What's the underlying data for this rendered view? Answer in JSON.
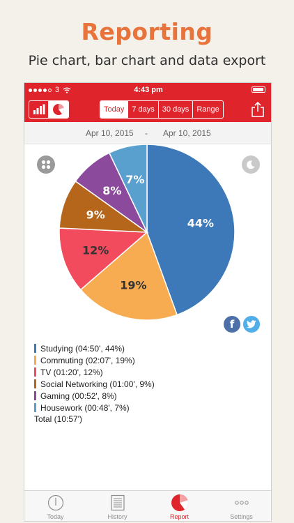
{
  "promo": {
    "title": "Reporting",
    "subtitle": "Pie chart, bar chart and data export"
  },
  "status_bar": {
    "carrier": "3",
    "time": "4:43 pm"
  },
  "toolbar": {
    "range_options": [
      "Today",
      "7 days",
      "30 days",
      "Range"
    ],
    "selected_range": "Today",
    "view_icons": [
      "bar-chart-icon",
      "pie-chart-icon"
    ],
    "selected_view": "pie-chart-icon",
    "share_icon": "share-icon"
  },
  "date_range": {
    "start": "Apr 10, 2015",
    "separator": "-",
    "end": "Apr 10, 2015"
  },
  "chart_data": {
    "type": "pie",
    "slices": [
      {
        "name": "Studying",
        "value": 44,
        "label": "44%",
        "color": "#3d78b8"
      },
      {
        "name": "Commuting",
        "value": 19,
        "label": "19%",
        "color": "#f8ac52"
      },
      {
        "name": "TV",
        "value": 12,
        "label": "12%",
        "color": "#f24b5e"
      },
      {
        "name": "Social Networking",
        "value": 9,
        "label": "9%",
        "color": "#b5661b"
      },
      {
        "name": "Gaming",
        "value": 8,
        "label": "8%",
        "color": "#8b4a9c"
      },
      {
        "name": "Housework",
        "value": 7,
        "label": "7%",
        "color": "#5aa0cf"
      }
    ]
  },
  "legend": {
    "items": [
      {
        "text": "Studying  (04:50', 44%)",
        "color": "#3d78b8"
      },
      {
        "text": "Commuting  (02:07', 19%)",
        "color": "#f8ac52"
      },
      {
        "text": "TV (01:20', 12%)",
        "color": "#f24b5e"
      },
      {
        "text": "Social Networking (01:00', 9%)",
        "color": "#b5661b"
      },
      {
        "text": "Gaming  (00:52', 8%)",
        "color": "#8b4a9c"
      },
      {
        "text": "Housework  (00:48', 7%)",
        "color": "#5aa0cf"
      }
    ],
    "total": "Total (10:57')"
  },
  "social": {
    "facebook": "facebook-icon",
    "twitter": "twitter-icon"
  },
  "tabs": [
    {
      "label": "Today",
      "icon": "clock-icon",
      "active": false
    },
    {
      "label": "History",
      "icon": "notepad-icon",
      "active": false
    },
    {
      "label": "Report",
      "icon": "pie-chart-icon",
      "active": true
    },
    {
      "label": "Settings",
      "icon": "more-dots-icon",
      "active": false
    }
  ],
  "colors": {
    "brand_red": "#e0242c",
    "promo_orange": "#e8743b"
  }
}
